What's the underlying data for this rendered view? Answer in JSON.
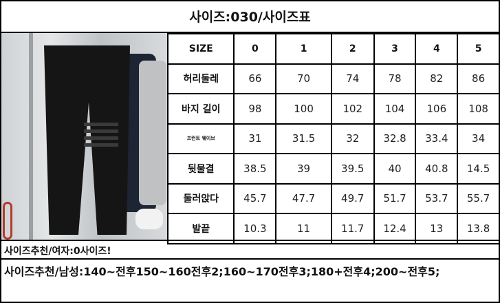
{
  "title": "사이즈:030/사이즈표",
  "table": {
    "header": [
      "SIZE",
      "0",
      "1",
      "2",
      "3",
      "4",
      "5"
    ],
    "rows": [
      {
        "label": "허리둘레",
        "values": [
          "66",
          "70",
          "74",
          "78",
          "82",
          "86"
        ]
      },
      {
        "label": "바지 길이",
        "values": [
          "98",
          "100",
          "102",
          "104",
          "106",
          "108"
        ]
      },
      {
        "label": "프런트 웨이브",
        "values": [
          "31",
          "31.5",
          "32",
          "32.8",
          "33.4",
          "34"
        ]
      },
      {
        "label": "뒷물결",
        "values": [
          "38.5",
          "39",
          "39.5",
          "40",
          "40.8",
          "14.5"
        ]
      },
      {
        "label": "둘러앉다",
        "values": [
          "45.7",
          "47.7",
          "49.7",
          "51.7",
          "53.7",
          "55.7"
        ]
      },
      {
        "label": "발끝",
        "values": [
          "10.3",
          "11",
          "11.7",
          "12.4",
          "13",
          "13.8"
        ]
      }
    ]
  },
  "recommend_women": "사이즈추천/여자:0사이즈!",
  "recommend_men": "사이즈추천/남성:140~전후150~160전후2;160~170전후3;180+전후4;200~전후5;"
}
